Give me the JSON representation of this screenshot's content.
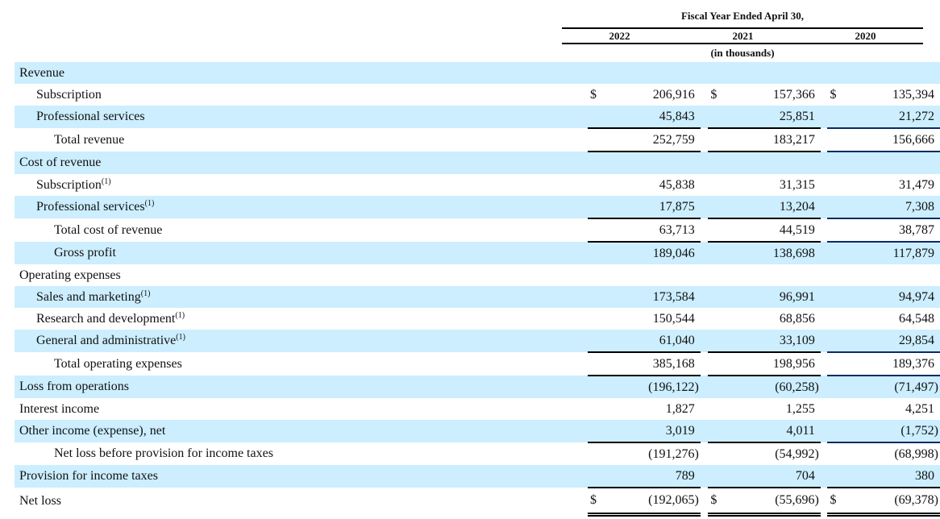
{
  "header": {
    "title": "Fiscal Year Ended April 30,",
    "years": [
      "2022",
      "2021",
      "2020"
    ],
    "units": "(in thousands)"
  },
  "colors": {
    "shade": "#cceeff",
    "navy_rule": "#0a2a66"
  },
  "rows": [
    {
      "label": "Revenue",
      "level": 0,
      "shaded": true,
      "values": [
        "",
        "",
        ""
      ]
    },
    {
      "label": "Subscription",
      "level": 1,
      "shaded": false,
      "dollar": "$",
      "values": [
        "206,916",
        "157,366",
        "135,394"
      ]
    },
    {
      "label": "Professional services",
      "level": 1,
      "shaded": true,
      "values": [
        "45,843",
        "25,851",
        "21,272"
      ]
    },
    {
      "label": "Total revenue",
      "level": 2,
      "shaded": false,
      "type": "subtotal",
      "values": [
        "252,759",
        "183,217",
        "156,666"
      ]
    },
    {
      "label": "Cost of revenue",
      "level": 0,
      "shaded": true,
      "values": [
        "",
        "",
        ""
      ]
    },
    {
      "label": "Subscription",
      "sup": "(1)",
      "level": 1,
      "shaded": false,
      "values": [
        "45,838",
        "31,315",
        "31,479"
      ]
    },
    {
      "label": "Professional services",
      "sup": "(1)",
      "level": 1,
      "shaded": true,
      "values": [
        "17,875",
        "13,204",
        "7,308"
      ]
    },
    {
      "label": "Total cost of revenue",
      "level": 2,
      "shaded": false,
      "type": "subtotal",
      "values": [
        "63,713",
        "44,519",
        "38,787"
      ]
    },
    {
      "label": "Gross profit",
      "level": 2,
      "shaded": true,
      "values": [
        "189,046",
        "138,698",
        "117,879"
      ]
    },
    {
      "label": "Operating expenses",
      "level": 0,
      "shaded": false,
      "values": [
        "",
        "",
        ""
      ]
    },
    {
      "label": "Sales and marketing",
      "sup": "(1)",
      "level": 1,
      "shaded": true,
      "values": [
        "173,584",
        "96,991",
        "94,974"
      ]
    },
    {
      "label": "Research and development",
      "sup": "(1)",
      "level": 1,
      "shaded": false,
      "values": [
        "150,544",
        "68,856",
        "64,548"
      ]
    },
    {
      "label": "General and administrative",
      "sup": "(1)",
      "level": 1,
      "shaded": true,
      "values": [
        "61,040",
        "33,109",
        "29,854"
      ]
    },
    {
      "label": "Total operating expenses",
      "level": 2,
      "shaded": false,
      "type": "subtotal",
      "values": [
        "385,168",
        "198,956",
        "189,376"
      ]
    },
    {
      "label": "Loss from operations",
      "level": 0,
      "shaded": true,
      "values": [
        "(196,122)",
        "(60,258)",
        "(71,497)"
      ]
    },
    {
      "label": "Interest income",
      "level": 0,
      "shaded": false,
      "values": [
        "1,827",
        "1,255",
        "4,251"
      ]
    },
    {
      "label": "Other income (expense), net",
      "level": 0,
      "shaded": true,
      "values": [
        "3,019",
        "4,011",
        "(1,752)"
      ]
    },
    {
      "label": "Net loss before provision for income taxes",
      "level": 2,
      "shaded": false,
      "type": "sum",
      "values": [
        "(191,276)",
        "(54,992)",
        "(68,998)"
      ]
    },
    {
      "label": "Provision for income taxes",
      "level": 0,
      "shaded": true,
      "values": [
        "789",
        "704",
        "380"
      ]
    },
    {
      "label": "Net loss",
      "level": 0,
      "shaded": false,
      "type": "total",
      "dollar": "$",
      "values": [
        "(192,065)",
        "(55,696)",
        "(69,378)"
      ]
    }
  ]
}
